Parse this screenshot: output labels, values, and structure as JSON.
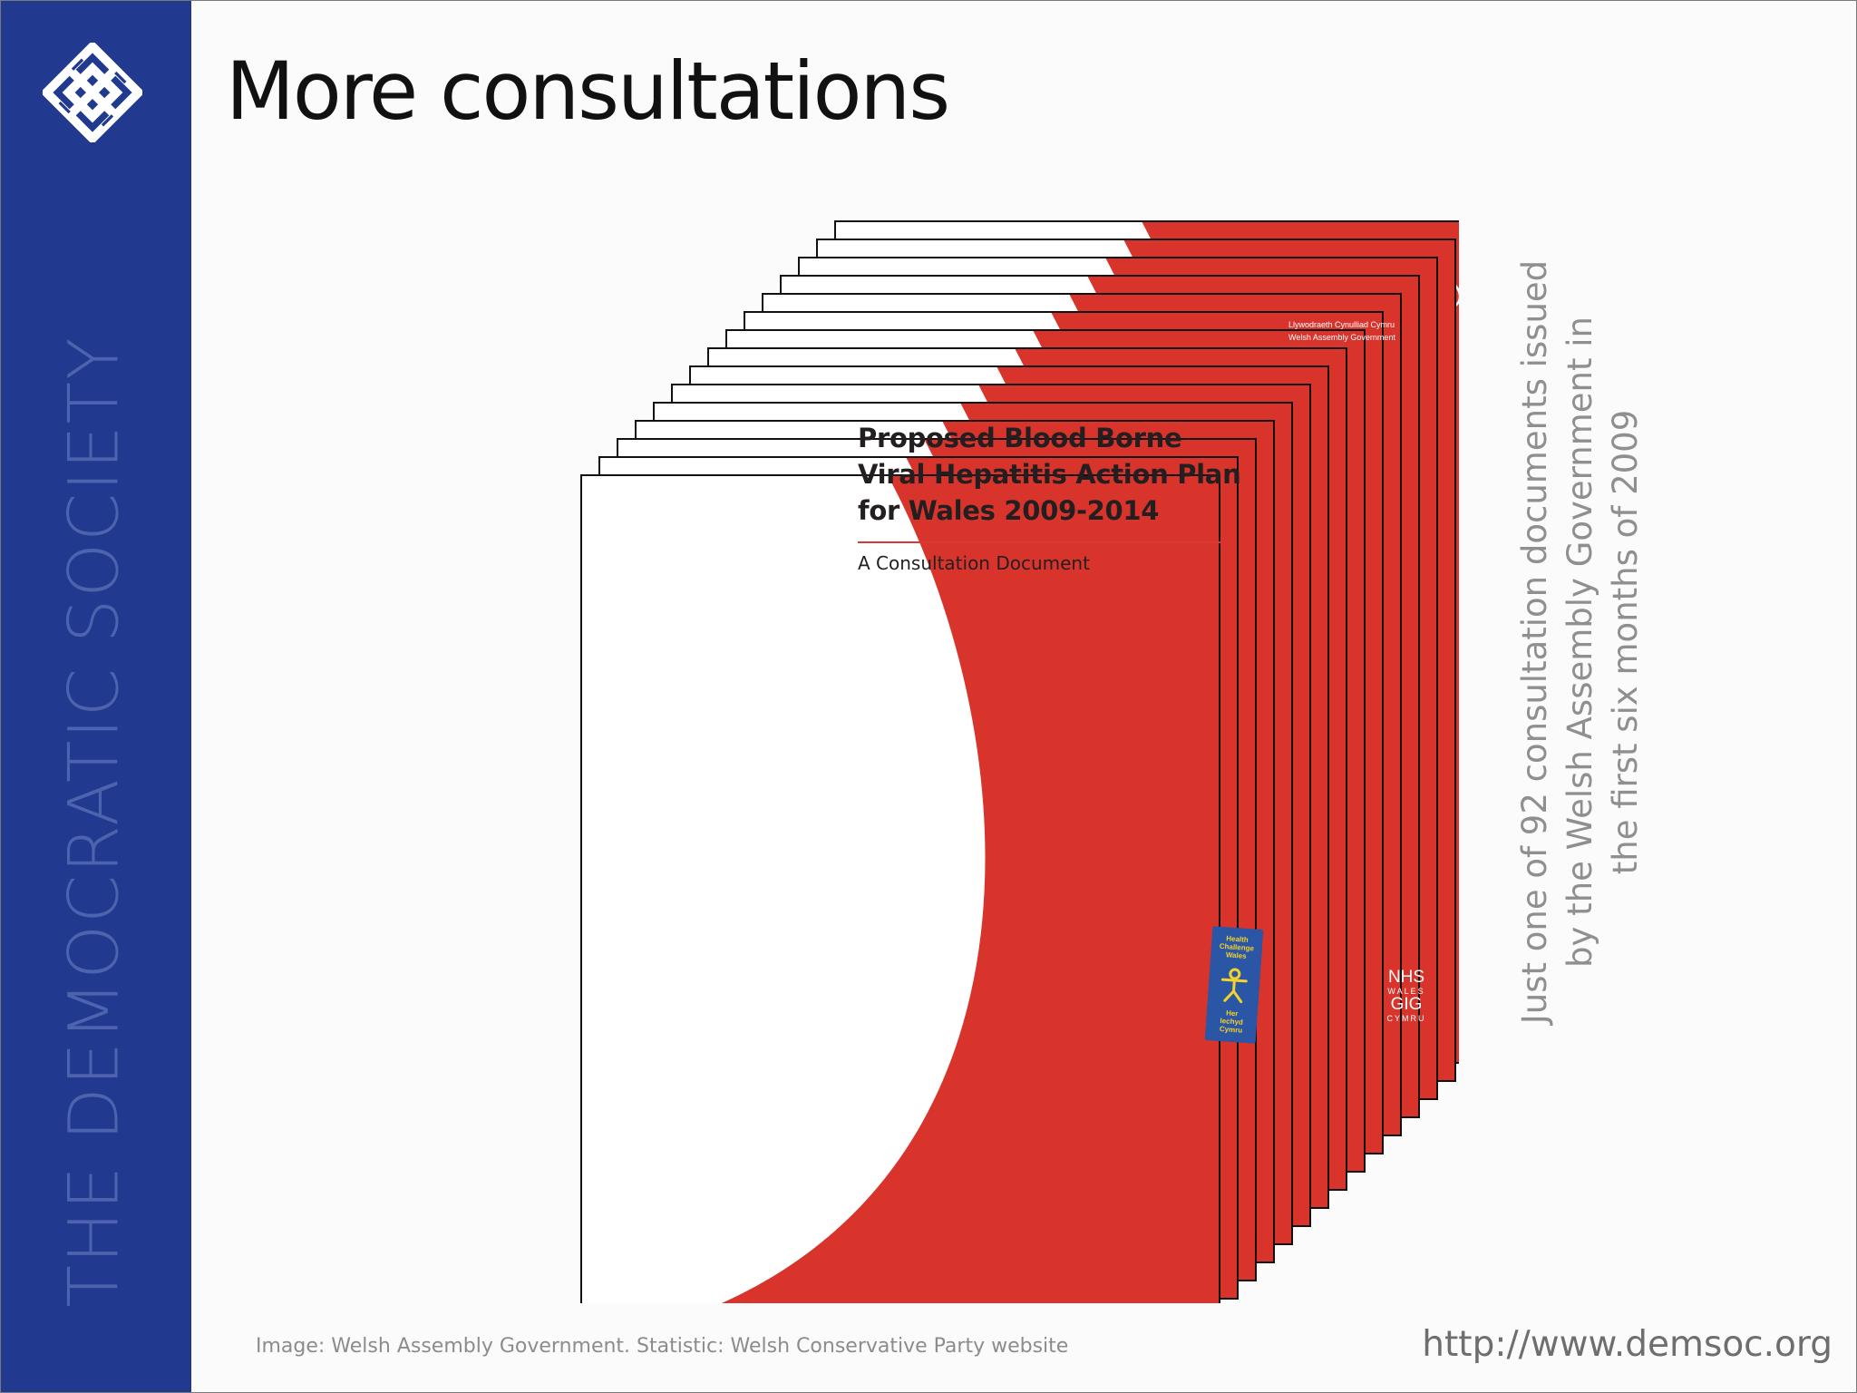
{
  "sidebar": {
    "org_name": "THE DEMOCRATIC SOCIETY",
    "logo_icon": "interlaced-knot-logo",
    "background_color": "#213a8f"
  },
  "slide": {
    "title": "More consultations"
  },
  "document": {
    "title_lines": [
      "Proposed Blood Borne",
      "Viral Hepatitis Action Plan",
      "for Wales 2009-2014"
    ],
    "subtitle": "A Consultation Document",
    "government_lines": [
      "Llywodraeth Cynulliad Cymru",
      "Welsh Assembly Government"
    ],
    "nhs_lines": [
      "NHS",
      "WALES",
      "GIG",
      "CYMRU"
    ],
    "badge_lines_top": [
      "Health",
      "Challenge",
      "Wales"
    ],
    "badge_lines_bottom": [
      "Her",
      "Iechyd",
      "Cymru"
    ],
    "accent_color": "#d8342c",
    "stacked_copies": 15
  },
  "side_note": {
    "lines": [
      "Just one of 92 consultation documents issued",
      "by the  Welsh Assembly Government in",
      "the first six months of 2009"
    ]
  },
  "footer": {
    "credit": "Image: Welsh Assembly Government. Statistic: Welsh Conservative Party website",
    "url": "http://www.demsoc.org"
  }
}
